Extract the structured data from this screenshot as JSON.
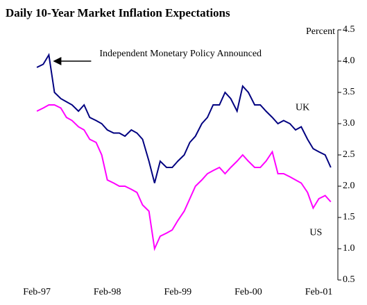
{
  "chart_data": {
    "type": "line",
    "title": "Daily 10-Year Market Inflation Expectations",
    "y_label": "Percent",
    "annotation": "Independent Monetary Policy Announced",
    "annotation_x": 1997.25,
    "annotation_y": 4.0,
    "x": [
      1997.08,
      1997.17,
      1997.25,
      1997.33,
      1997.42,
      1997.5,
      1997.58,
      1997.67,
      1997.75,
      1997.83,
      1997.92,
      1998.0,
      1998.08,
      1998.17,
      1998.25,
      1998.33,
      1998.42,
      1998.5,
      1998.58,
      1998.67,
      1998.75,
      1998.83,
      1998.92,
      1999.0,
      1999.08,
      1999.17,
      1999.25,
      1999.33,
      1999.42,
      1999.5,
      1999.58,
      1999.67,
      1999.75,
      1999.83,
      1999.92,
      2000.0,
      2000.08,
      2000.17,
      2000.25,
      2000.33,
      2000.42,
      2000.5,
      2000.58,
      2000.67,
      2000.75,
      2000.83,
      2000.92,
      2001.0,
      2001.08,
      2001.17,
      2001.25
    ],
    "series": [
      {
        "name": "UK",
        "color": "#000080",
        "values": [
          3.9,
          3.95,
          4.1,
          3.5,
          3.4,
          3.35,
          3.3,
          3.2,
          3.3,
          3.1,
          3.05,
          3.0,
          2.9,
          2.85,
          2.85,
          2.8,
          2.9,
          2.85,
          2.75,
          2.4,
          2.05,
          2.4,
          2.3,
          2.3,
          2.4,
          2.5,
          2.7,
          2.8,
          3.0,
          3.1,
          3.3,
          3.3,
          3.5,
          3.4,
          3.2,
          3.6,
          3.5,
          3.3,
          3.3,
          3.2,
          3.1,
          3.0,
          3.05,
          3.0,
          2.9,
          2.95,
          2.75,
          2.6,
          2.55,
          2.5,
          2.3
        ],
        "label_x": 2000.75,
        "label_y": 3.25
      },
      {
        "name": "US",
        "color": "#ff00ff",
        "values": [
          3.2,
          3.25,
          3.3,
          3.3,
          3.25,
          3.1,
          3.05,
          2.95,
          2.9,
          2.75,
          2.7,
          2.5,
          2.1,
          2.05,
          2.0,
          2.0,
          1.95,
          1.9,
          1.7,
          1.6,
          1.0,
          1.2,
          1.25,
          1.3,
          1.45,
          1.6,
          1.8,
          2.0,
          2.1,
          2.2,
          2.25,
          2.3,
          2.2,
          2.3,
          2.4,
          2.5,
          2.4,
          2.3,
          2.3,
          2.4,
          2.55,
          2.2,
          2.2,
          2.15,
          2.1,
          2.05,
          1.9,
          1.65,
          1.8,
          1.85,
          1.75
        ],
        "label_x": 2000.95,
        "label_y": 1.25
      }
    ],
    "xlim": [
      1997.0,
      2001.35
    ],
    "xticks": [
      {
        "value": 1997.08,
        "label": "Feb-97"
      },
      {
        "value": 1998.08,
        "label": "Feb-98"
      },
      {
        "value": 1999.08,
        "label": "Feb-99"
      },
      {
        "value": 2000.08,
        "label": "Feb-00"
      },
      {
        "value": 2001.08,
        "label": "Feb-01"
      }
    ],
    "ylim": [
      0.5,
      4.5
    ],
    "yticks": [
      0.5,
      {
        "value": 1,
        "label": "1.0"
      },
      1.5,
      {
        "value": 2,
        "label": "2.0"
      },
      2.5,
      {
        "value": 3,
        "label": "3.0"
      },
      3.5,
      {
        "value": 4,
        "label": "4.0"
      },
      4.5
    ],
    "y_axis_side": "right",
    "grid": false
  }
}
